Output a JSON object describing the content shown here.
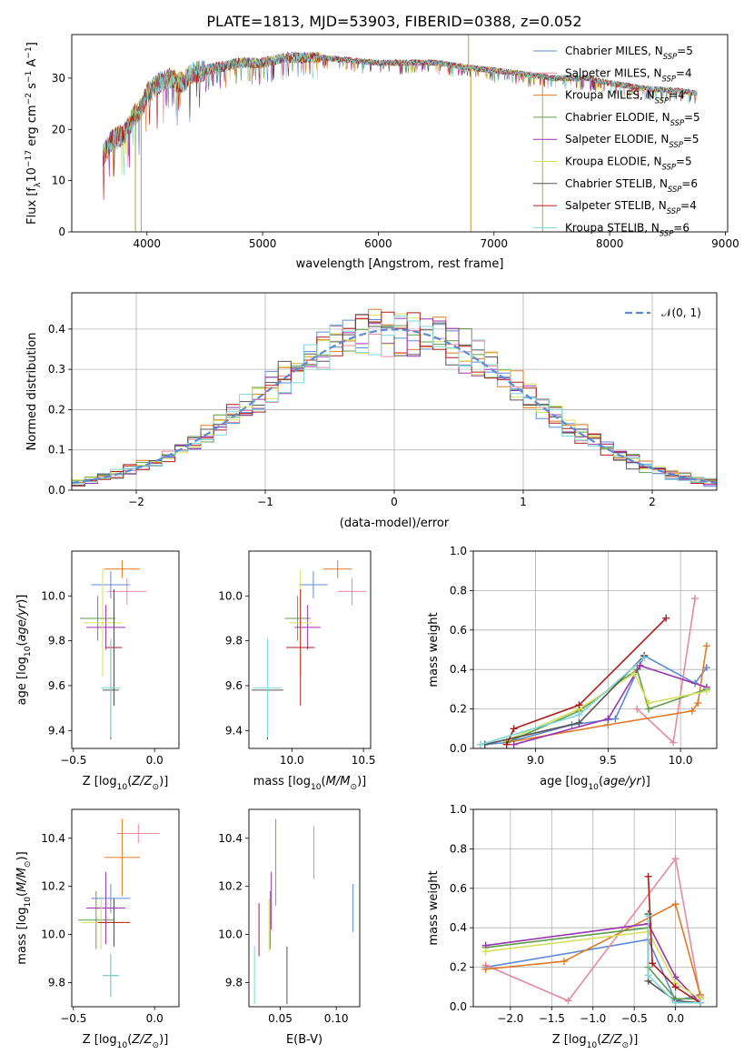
{
  "figure": {
    "title": "PLATE=1813, MJD=53903, FIBERID=0388, z=0.052"
  },
  "colors": {
    "Chabrier MILES": "#5b8bd6",
    "Salpeter MILES": "#e5899f",
    "Kroupa MILES": "#e07a26",
    "Chabrier ELODIE": "#5e9c4a",
    "Salpeter ELODIE": "#9a35b0",
    "Kroupa ELODIE": "#d6e05a",
    "Chabrier STELIB": "#555555",
    "Salpeter STELIB": "#b01c1c",
    "Kroupa STELIB": "#7ed6d6",
    "gaussian": "#5b8bd6"
  },
  "chart_data": [
    {
      "id": "spectrum",
      "type": "line",
      "title": "PLATE=1813, MJD=53903, FIBERID=0388, z=0.052",
      "xlabel": "wavelength [Angstrom, rest frame]",
      "ylabel": "Flux [f_λ10^-17 erg cm^-2 s^-1 A^-1]",
      "xlim": [
        3350,
        9020
      ],
      "ylim": [
        0,
        38.5
      ],
      "xticks": [
        4000,
        5000,
        6000,
        7000,
        8000,
        9000
      ],
      "yticks": [
        0,
        10,
        20,
        30
      ],
      "legend_position": "top-right",
      "legend": [
        {
          "label": "Chabrier MILES",
          "nssp": "5"
        },
        {
          "label": "Salpeter MILES",
          "nssp": "4"
        },
        {
          "label": "Kroupa MILES",
          "nssp": "4"
        },
        {
          "label": "Chabrier ELODIE",
          "nssp": "5"
        },
        {
          "label": "Salpeter ELODIE",
          "nssp": "5"
        },
        {
          "label": "Kroupa ELODIE",
          "nssp": "5"
        },
        {
          "label": "Chabrier STELIB",
          "nssp": "6"
        },
        {
          "label": "Salpeter STELIB",
          "nssp": "4"
        },
        {
          "label": "Kroupa STELIB",
          "nssp": "6"
        }
      ],
      "continuum": {
        "x": [
          3620,
          3700,
          3800,
          3900,
          3950,
          4000,
          4100,
          4200,
          4300,
          4400,
          4600,
          4800,
          5000,
          5200,
          5500,
          6000,
          6500,
          6800,
          7200,
          7500,
          7800,
          8000,
          8300,
          8600,
          8760
        ],
        "y": [
          15,
          18,
          19,
          23,
          24,
          27,
          29,
          30,
          29,
          31,
          32,
          33,
          33,
          34,
          34,
          33,
          33,
          32,
          31,
          30,
          30,
          29,
          28,
          27.5,
          27
        ]
      },
      "spikes": [
        {
          "x": 3900,
          "y": 0
        },
        {
          "x": 3950,
          "y": 0
        },
        {
          "x": 6780,
          "y": 38.5
        },
        {
          "x": 6800,
          "y": 0
        },
        {
          "x": 7420,
          "y": 0
        }
      ]
    },
    {
      "id": "residuals",
      "type": "step",
      "xlabel": "(data-model)/error",
      "ylabel": "Normed distribution",
      "xlim": [
        -2.5,
        2.5
      ],
      "ylim": [
        0,
        0.49
      ],
      "xticks": [
        -2,
        -1,
        0,
        1,
        2
      ],
      "yticks": [
        0.0,
        0.1,
        0.2,
        0.3,
        0.4
      ],
      "grid": true,
      "legend_position": "top-right",
      "gaussian_label": "𝒩(0, 1)",
      "bin_width": 0.1,
      "note": "nine per-model histograms scattered around the N(0,1) curve"
    },
    {
      "id": "age_vs_z",
      "type": "errorbar",
      "xlabel": "Z [log10(Z/Z⊙)]",
      "ylabel": "age  [log10(age/yr)]",
      "xlim": [
        -0.51,
        0.15
      ],
      "ylim": [
        9.32,
        10.2
      ],
      "xticks": [
        -0.5,
        0.0
      ],
      "yticks": [
        9.4,
        9.6,
        9.8,
        10.0
      ],
      "points": [
        {
          "m": "Chabrier MILES",
          "x": -0.27,
          "xe": 0.12,
          "y": 10.05,
          "ye": 0.06
        },
        {
          "m": "Salpeter MILES",
          "x": -0.17,
          "xe": 0.12,
          "y": 10.02,
          "ye": 0.06
        },
        {
          "m": "Kroupa MILES",
          "x": -0.2,
          "xe": 0.11,
          "y": 10.12,
          "ye": 0.04
        },
        {
          "m": "Chabrier ELODIE",
          "x": -0.35,
          "xe": 0.11,
          "y": 9.9,
          "ye": 0.1
        },
        {
          "m": "Salpeter ELODIE",
          "x": -0.3,
          "xe": 0.12,
          "y": 9.86,
          "ye": 0.1
        },
        {
          "m": "Kroupa ELODIE",
          "x": -0.32,
          "xe": 0.12,
          "y": 9.88,
          "ye": 0.24
        },
        {
          "m": "Chabrier STELIB",
          "x": -0.27,
          "xe": 0.05,
          "y": 9.58,
          "ye": 0.22
        },
        {
          "m": "Salpeter STELIB",
          "x": -0.25,
          "xe": 0.05,
          "y": 9.77,
          "ye": 0.26
        },
        {
          "m": "Kroupa STELIB",
          "x": -0.27,
          "xe": 0.06,
          "y": 9.59,
          "ye": 0.22
        }
      ]
    },
    {
      "id": "age_vs_mass",
      "type": "errorbar",
      "xlabel": "mass [log10(M/M⊙)]",
      "ylabel": "",
      "xlim": [
        9.7,
        10.55
      ],
      "ylim": [
        9.32,
        10.2
      ],
      "xticks": [
        10.0,
        10.5
      ],
      "yticks": [
        9.4,
        9.6,
        9.8,
        10.0
      ],
      "points": [
        {
          "m": "Chabrier MILES",
          "x": 10.15,
          "xe": 0.1,
          "y": 10.05,
          "ye": 0.06
        },
        {
          "m": "Salpeter MILES",
          "x": 10.42,
          "xe": 0.1,
          "y": 10.02,
          "ye": 0.06
        },
        {
          "m": "Kroupa MILES",
          "x": 10.32,
          "xe": 0.1,
          "y": 10.12,
          "ye": 0.04
        },
        {
          "m": "Chabrier ELODIE",
          "x": 10.04,
          "xe": 0.09,
          "y": 9.9,
          "ye": 0.1
        },
        {
          "m": "Salpeter ELODIE",
          "x": 10.11,
          "xe": 0.09,
          "y": 9.86,
          "ye": 0.1
        },
        {
          "m": "Kroupa ELODIE",
          "x": 10.06,
          "xe": 0.08,
          "y": 9.88,
          "ye": 0.24
        },
        {
          "m": "Chabrier STELIB",
          "x": 9.83,
          "xe": 0.11,
          "y": 9.58,
          "ye": 0.22
        },
        {
          "m": "Salpeter STELIB",
          "x": 10.06,
          "xe": 0.1,
          "y": 9.77,
          "ye": 0.26
        },
        {
          "m": "Kroupa STELIB",
          "x": 9.83,
          "xe": 0.1,
          "y": 9.59,
          "ye": 0.22
        }
      ]
    },
    {
      "id": "weight_vs_age",
      "type": "line",
      "xlabel": "age  [log10(age/yr)]",
      "ylabel": "mass weight",
      "xlim": [
        8.57,
        10.25
      ],
      "ylim": [
        0,
        1.0
      ],
      "xticks": [
        9.0,
        9.5,
        10.0
      ],
      "yticks": [
        0.0,
        0.2,
        0.4,
        0.6,
        0.8,
        1.0
      ],
      "grid": true,
      "series": [
        {
          "m": "Chabrier MILES",
          "x": [
            8.65,
            8.8,
            9.25,
            9.55,
            9.75,
            10.1,
            10.18
          ],
          "y": [
            0.02,
            0.03,
            0.12,
            0.15,
            0.47,
            0.33,
            0.41
          ]
        },
        {
          "m": "Salpeter MILES",
          "x": [
            9.7,
            9.95,
            10.1
          ],
          "y": [
            0.2,
            0.03,
            0.76
          ]
        },
        {
          "m": "Kroupa MILES",
          "x": [
            8.8,
            9.5,
            10.08,
            10.12,
            10.18
          ],
          "y": [
            0.03,
            0.12,
            0.19,
            0.23,
            0.52
          ]
        },
        {
          "m": "Chabrier ELODIE",
          "x": [
            8.8,
            9.3,
            9.7,
            9.78,
            10.18
          ],
          "y": [
            0.03,
            0.19,
            0.4,
            0.2,
            0.3
          ]
        },
        {
          "m": "Salpeter ELODIE",
          "x": [
            8.85,
            9.5,
            9.72,
            10.18
          ],
          "y": [
            0.02,
            0.15,
            0.42,
            0.31
          ]
        },
        {
          "m": "Kroupa ELODIE",
          "x": [
            8.8,
            9.3,
            9.68,
            9.78,
            10.18
          ],
          "y": [
            0.04,
            0.2,
            0.38,
            0.23,
            0.29
          ]
        },
        {
          "m": "Chabrier STELIB",
          "x": [
            8.65,
            9.3,
            9.75
          ],
          "y": [
            0.02,
            0.13,
            0.47
          ]
        },
        {
          "m": "Salpeter STELIB",
          "x": [
            8.8,
            8.85,
            9.3,
            9.9
          ],
          "y": [
            0.02,
            0.1,
            0.22,
            0.66
          ]
        },
        {
          "m": "Kroupa STELIB",
          "x": [
            8.62,
            9.3,
            9.75
          ],
          "y": [
            0.02,
            0.17,
            0.46
          ]
        }
      ]
    },
    {
      "id": "mass_vs_z",
      "type": "errorbar",
      "xlabel": "Z [log10(Z/Z⊙)]",
      "ylabel": "mass [log10(M/M⊙)]",
      "xlim": [
        -0.51,
        0.15
      ],
      "ylim": [
        9.7,
        10.52
      ],
      "xticks": [
        -0.5,
        0.0
      ],
      "yticks": [
        9.8,
        10.0,
        10.2,
        10.4
      ],
      "points": [
        {
          "m": "Chabrier MILES",
          "x": -0.27,
          "xe": 0.12,
          "y": 10.15,
          "ye": 0.06
        },
        {
          "m": "Salpeter MILES",
          "x": -0.1,
          "xe": 0.13,
          "y": 10.42,
          "ye": 0.04
        },
        {
          "m": "Kroupa MILES",
          "x": -0.2,
          "xe": 0.11,
          "y": 10.32,
          "ye": 0.16
        },
        {
          "m": "Chabrier ELODIE",
          "x": -0.36,
          "xe": 0.11,
          "y": 10.06,
          "ye": 0.12
        },
        {
          "m": "Salpeter ELODIE",
          "x": -0.3,
          "xe": 0.12,
          "y": 10.11,
          "ye": 0.15
        },
        {
          "m": "Kroupa ELODIE",
          "x": -0.33,
          "xe": 0.12,
          "y": 10.05,
          "ye": 0.11
        },
        {
          "m": "Chabrier STELIB",
          "x": -0.27,
          "xe": 0.05,
          "y": 9.83,
          "ye": 0.09
        },
        {
          "m": "Salpeter STELIB",
          "x": -0.25,
          "xe": 0.1,
          "y": 10.05,
          "ye": 0.1
        },
        {
          "m": "Kroupa STELIB",
          "x": -0.27,
          "xe": 0.05,
          "y": 9.83,
          "ye": 0.09
        }
      ]
    },
    {
      "id": "mass_vs_ebv",
      "type": "errorbar",
      "xlabel": "E(B-V)",
      "ylabel": "",
      "xlim": [
        0.022,
        0.121
      ],
      "ylim": [
        9.7,
        10.52
      ],
      "xticks": [
        0.05,
        0.1
      ],
      "yticks": [
        9.8,
        10.0,
        10.2,
        10.4
      ],
      "points": [
        {
          "m": "Chabrier MILES",
          "x": 0.115,
          "xe": 0,
          "y": 10.11,
          "ye": 0.1
        },
        {
          "m": "Salpeter MILES",
          "x": 0.08,
          "xe": 0,
          "y": 10.34,
          "ye": 0.11
        },
        {
          "m": "Kroupa MILES",
          "x": 0.046,
          "xe": 0,
          "y": 10.3,
          "ye": 0.18
        },
        {
          "m": "Chabrier ELODIE",
          "x": 0.041,
          "xe": 0,
          "y": 10.06,
          "ye": 0.12
        },
        {
          "m": "Salpeter ELODIE",
          "x": 0.042,
          "xe": 0,
          "y": 10.14,
          "ye": 0.12
        },
        {
          "m": "Kroupa ELODIE",
          "x": 0.04,
          "xe": 0,
          "y": 10.04,
          "ye": 0.11
        },
        {
          "m": "Chabrier STELIB",
          "x": 0.056,
          "xe": 0,
          "y": 9.83,
          "ye": 0.12
        },
        {
          "m": "Salpeter STELIB",
          "x": 0.031,
          "xe": 0,
          "y": 10.02,
          "ye": 0.11
        },
        {
          "m": "Kroupa STELIB",
          "x": 0.027,
          "xe": 0,
          "y": 9.83,
          "ye": 0.12
        }
      ]
    },
    {
      "id": "weight_vs_z",
      "type": "line",
      "xlabel": "Z [log10(Z/Z⊙)]",
      "ylabel": "mass weight",
      "xlim": [
        -2.45,
        0.5
      ],
      "ylim": [
        0,
        1.0
      ],
      "xticks": [
        -2.0,
        -1.5,
        -1.0,
        -0.5,
        0.0
      ],
      "yticks": [
        0.0,
        0.2,
        0.4,
        0.6,
        0.8,
        1.0
      ],
      "grid": true,
      "series": [
        {
          "m": "Chabrier MILES",
          "x": [
            -2.3,
            -0.33,
            0.0,
            0.3
          ],
          "y": [
            0.2,
            0.34,
            0.03,
            0.06
          ]
        },
        {
          "m": "Salpeter MILES",
          "x": [
            -2.3,
            -1.3,
            0.0,
            0.3
          ],
          "y": [
            0.21,
            0.03,
            0.75,
            0.05
          ]
        },
        {
          "m": "Kroupa MILES",
          "x": [
            -2.3,
            -1.35,
            0.0,
            0.3
          ],
          "y": [
            0.19,
            0.23,
            0.52,
            0.06
          ]
        },
        {
          "m": "Chabrier ELODIE",
          "x": [
            -2.3,
            -0.33,
            -0.33,
            0.0,
            0.3
          ],
          "y": [
            0.3,
            0.4,
            0.2,
            0.04,
            0.04
          ]
        },
        {
          "m": "Salpeter ELODIE",
          "x": [
            -2.3,
            -0.33,
            0.0,
            0.3
          ],
          "y": [
            0.31,
            0.42,
            0.15,
            0.02
          ]
        },
        {
          "m": "Kroupa ELODIE",
          "x": [
            -2.3,
            -0.33,
            0.0,
            0.3
          ],
          "y": [
            0.28,
            0.38,
            0.12,
            0.04
          ]
        },
        {
          "m": "Chabrier STELIB",
          "x": [
            -0.33,
            -0.33,
            0.0,
            0.3
          ],
          "y": [
            0.47,
            0.13,
            0.03,
            0.02
          ]
        },
        {
          "m": "Salpeter STELIB",
          "x": [
            -0.33,
            -0.28,
            0.0,
            0.3
          ],
          "y": [
            0.66,
            0.22,
            0.1,
            0.02
          ]
        },
        {
          "m": "Kroupa STELIB",
          "x": [
            -0.33,
            -0.33,
            0.0,
            0.3
          ],
          "y": [
            0.46,
            0.16,
            0.02,
            0.02
          ]
        }
      ]
    }
  ]
}
